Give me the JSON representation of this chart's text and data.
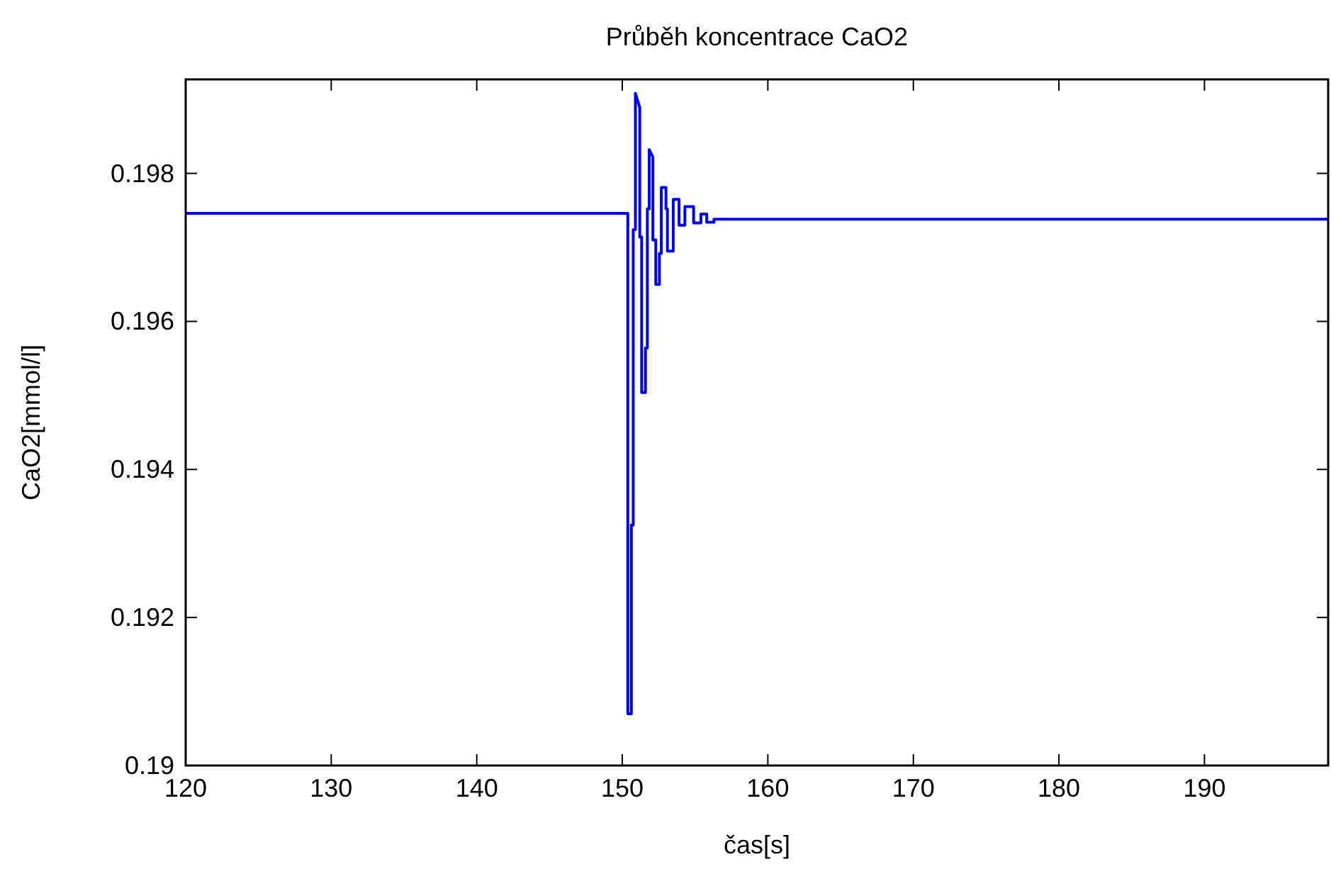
{
  "chart_data": {
    "type": "line",
    "title": "Průběh koncentrace CaO2",
    "xlabel": "čas[s]",
    "ylabel": "CaO2[mmol/l]",
    "xlim": [
      120,
      198.5
    ],
    "xticks": [
      120,
      130,
      140,
      150,
      160,
      170,
      180,
      190
    ],
    "ylim": [
      0.19,
      0.19927
    ],
    "yticks": [
      0.19,
      0.192,
      0.194,
      0.196,
      0.198
    ],
    "grid": false,
    "series": [
      {
        "color": "#0000ff",
        "x": [
          120,
          150.38,
          150.38,
          150.62,
          150.62,
          150.75,
          150.75,
          150.9,
          150.9,
          151.2,
          151.2,
          151.33,
          151.33,
          151.59,
          151.59,
          151.72,
          151.72,
          151.85,
          151.85,
          152.1,
          152.1,
          152.3,
          152.3,
          152.55,
          152.55,
          152.68,
          152.68,
          153.0,
          153.0,
          153.1,
          153.1,
          153.5,
          153.5,
          153.9,
          153.9,
          154.3,
          154.3,
          154.9,
          154.9,
          155.4,
          155.4,
          155.8,
          155.8,
          156.3,
          156.3,
          198.5
        ],
        "values": [
          0.19746,
          0.19746,
          0.1907,
          0.1907,
          0.19325,
          0.19325,
          0.19724,
          0.19724,
          0.19908,
          0.19889,
          0.19714,
          0.19714,
          0.19504,
          0.19504,
          0.19564,
          0.19564,
          0.19752,
          0.19752,
          0.19832,
          0.19822,
          0.1971,
          0.1971,
          0.1965,
          0.1965,
          0.19692,
          0.19692,
          0.19781,
          0.19781,
          0.19752,
          0.19752,
          0.19695,
          0.19695,
          0.19765,
          0.19765,
          0.1973,
          0.1973,
          0.19755,
          0.19755,
          0.19733,
          0.19733,
          0.19745,
          0.19745,
          0.19734,
          0.19734,
          0.19738,
          0.19738
        ]
      }
    ]
  }
}
